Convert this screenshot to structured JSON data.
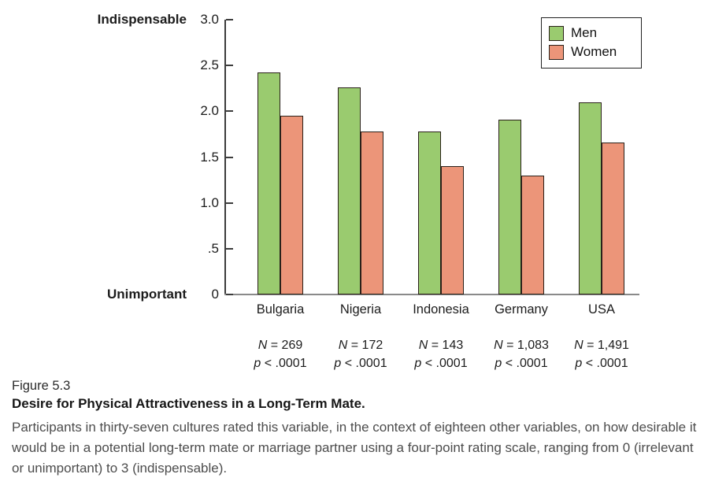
{
  "chart_data": {
    "type": "bar",
    "title": "",
    "categories": [
      "Bulgaria",
      "Nigeria",
      "Indonesia",
      "Germany",
      "USA"
    ],
    "series": [
      {
        "name": "Men",
        "color": "#9acb6f",
        "values": [
          2.42,
          2.26,
          1.78,
          1.91,
          2.1
        ]
      },
      {
        "name": "Women",
        "color": "#ec9579",
        "values": [
          1.95,
          1.78,
          1.4,
          1.3,
          1.66
        ]
      }
    ],
    "ylim": [
      0,
      3
    ],
    "y_ticks": [
      {
        "value": 0,
        "label": "0"
      },
      {
        "value": 0.5,
        "label": ".5"
      },
      {
        "value": 1.0,
        "label": "1.0"
      },
      {
        "value": 1.5,
        "label": "1.5"
      },
      {
        "value": 2.0,
        "label": "2.0"
      },
      {
        "value": 2.5,
        "label": "2.5"
      },
      {
        "value": 3.0,
        "label": "3.0"
      }
    ],
    "y_axis_top_label": "Indispensable",
    "y_axis_bottom_label": "Unimportant",
    "xlabel": "",
    "ylabel": "",
    "grid": false,
    "legend_position": "top-right",
    "annotations": {
      "n_labels": [
        "N = 269",
        "N = 172",
        "N = 143",
        "N = 1,083",
        "N = 1,491"
      ],
      "p_labels": [
        "p < .0001",
        "p < .0001",
        "p < .0001",
        "p < .0001",
        "p < .0001"
      ]
    }
  },
  "caption": {
    "figure_label": "Figure 5.3",
    "title": "Desire for Physical Attractiveness in a Long-Term Mate.",
    "body": "Participants in thirty-seven cultures rated this variable, in the context of eighteen other variables, on how desirable it would be in a potential long-term mate or marriage partner using a four-point rating scale, ranging from 0 (irrelevant or unimportant) to 3 (indispensable)."
  }
}
